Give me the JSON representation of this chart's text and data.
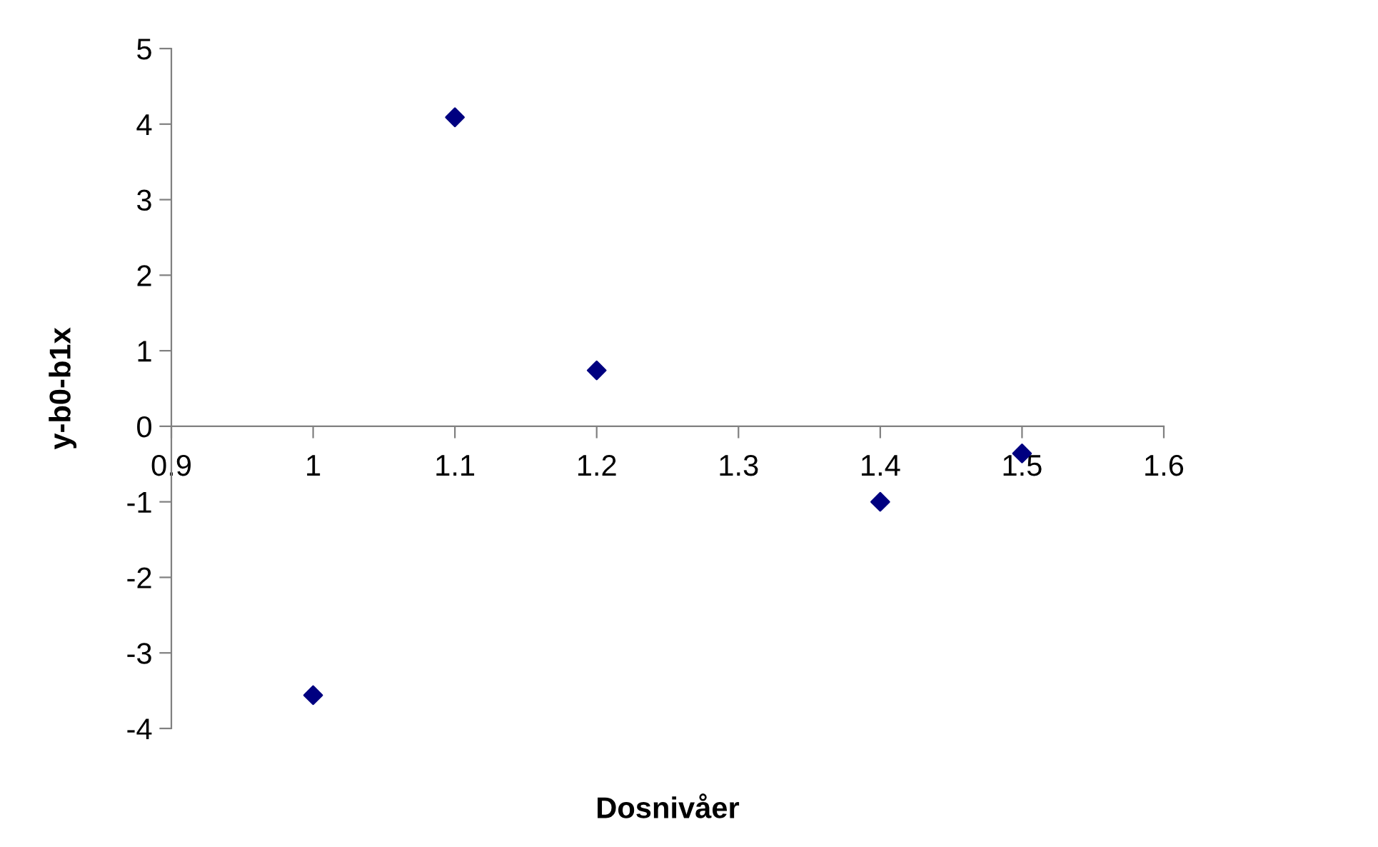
{
  "chart_data": {
    "type": "scatter",
    "xlabel": "Dosnivåer",
    "ylabel": "y-b0-b1x",
    "x": [
      1.0,
      1.1,
      1.2,
      1.4,
      1.5
    ],
    "series": [
      {
        "color": "#000080",
        "values": [
          -3.56,
          4.09,
          0.74,
          -1.0,
          -0.36
        ]
      }
    ],
    "xlim": [
      0.9,
      1.6
    ],
    "xticks": [
      0.9,
      1,
      1.1,
      1.2,
      1.3,
      1.4,
      1.5,
      1.6
    ],
    "ylim": [
      -4,
      5
    ],
    "yticks": [
      -4,
      -3,
      -2,
      -1,
      0,
      1,
      2,
      3,
      4,
      5
    ],
    "grid": false,
    "legend": false,
    "marker": "diamond"
  }
}
